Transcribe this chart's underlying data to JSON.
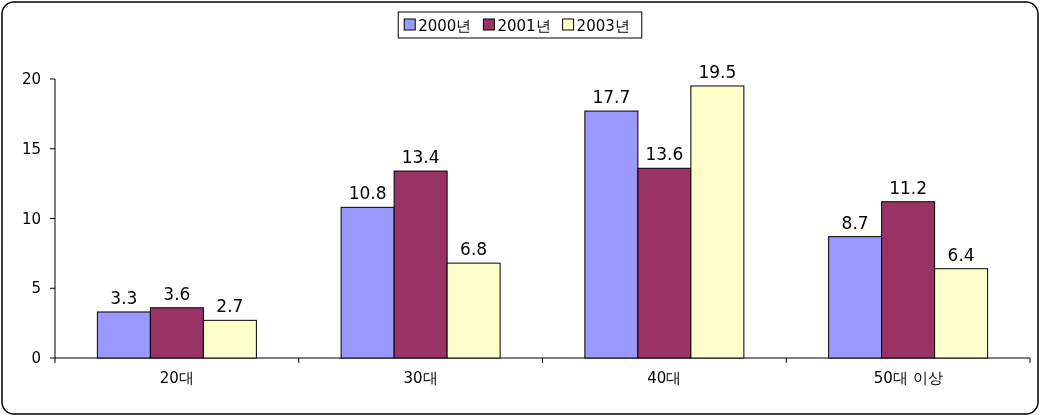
{
  "chart_data": {
    "type": "bar",
    "categories": [
      "20대",
      "30대",
      "40대",
      "50대 이상"
    ],
    "series": [
      {
        "name": "2000년",
        "color": "#9999ff",
        "values": [
          3.3,
          10.8,
          17.7,
          8.7
        ]
      },
      {
        "name": "2001년",
        "color": "#993366",
        "values": [
          3.6,
          13.4,
          13.6,
          11.2
        ]
      },
      {
        "name": "2003년",
        "color": "#ffffcc",
        "values": [
          2.7,
          6.8,
          19.5,
          6.4
        ]
      }
    ],
    "ylim": [
      0,
      20
    ],
    "yticks": [
      0,
      5,
      10,
      15,
      20
    ],
    "data_labels": true,
    "legend": "top"
  }
}
